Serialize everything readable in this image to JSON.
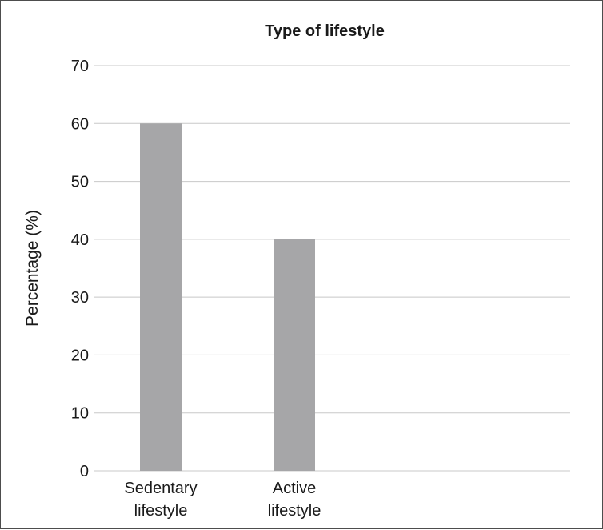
{
  "chart_data": {
    "type": "bar",
    "title": "Type of lifestyle",
    "xlabel": "",
    "ylabel": "Percentage (%)",
    "categories": [
      [
        "Sedentary",
        "lifestyle"
      ],
      [
        "Active",
        "lifestyle"
      ]
    ],
    "values": [
      60,
      40
    ],
    "ylim": [
      0,
      70
    ],
    "yticks": [
      0,
      10,
      20,
      30,
      40,
      50,
      60,
      70
    ],
    "grid": true,
    "legend": "none",
    "colors": {
      "bar": "#a6a6a8",
      "grid": "#c8c8c8",
      "frame": "#4d4d4d",
      "text": "#1a1a1a"
    }
  }
}
